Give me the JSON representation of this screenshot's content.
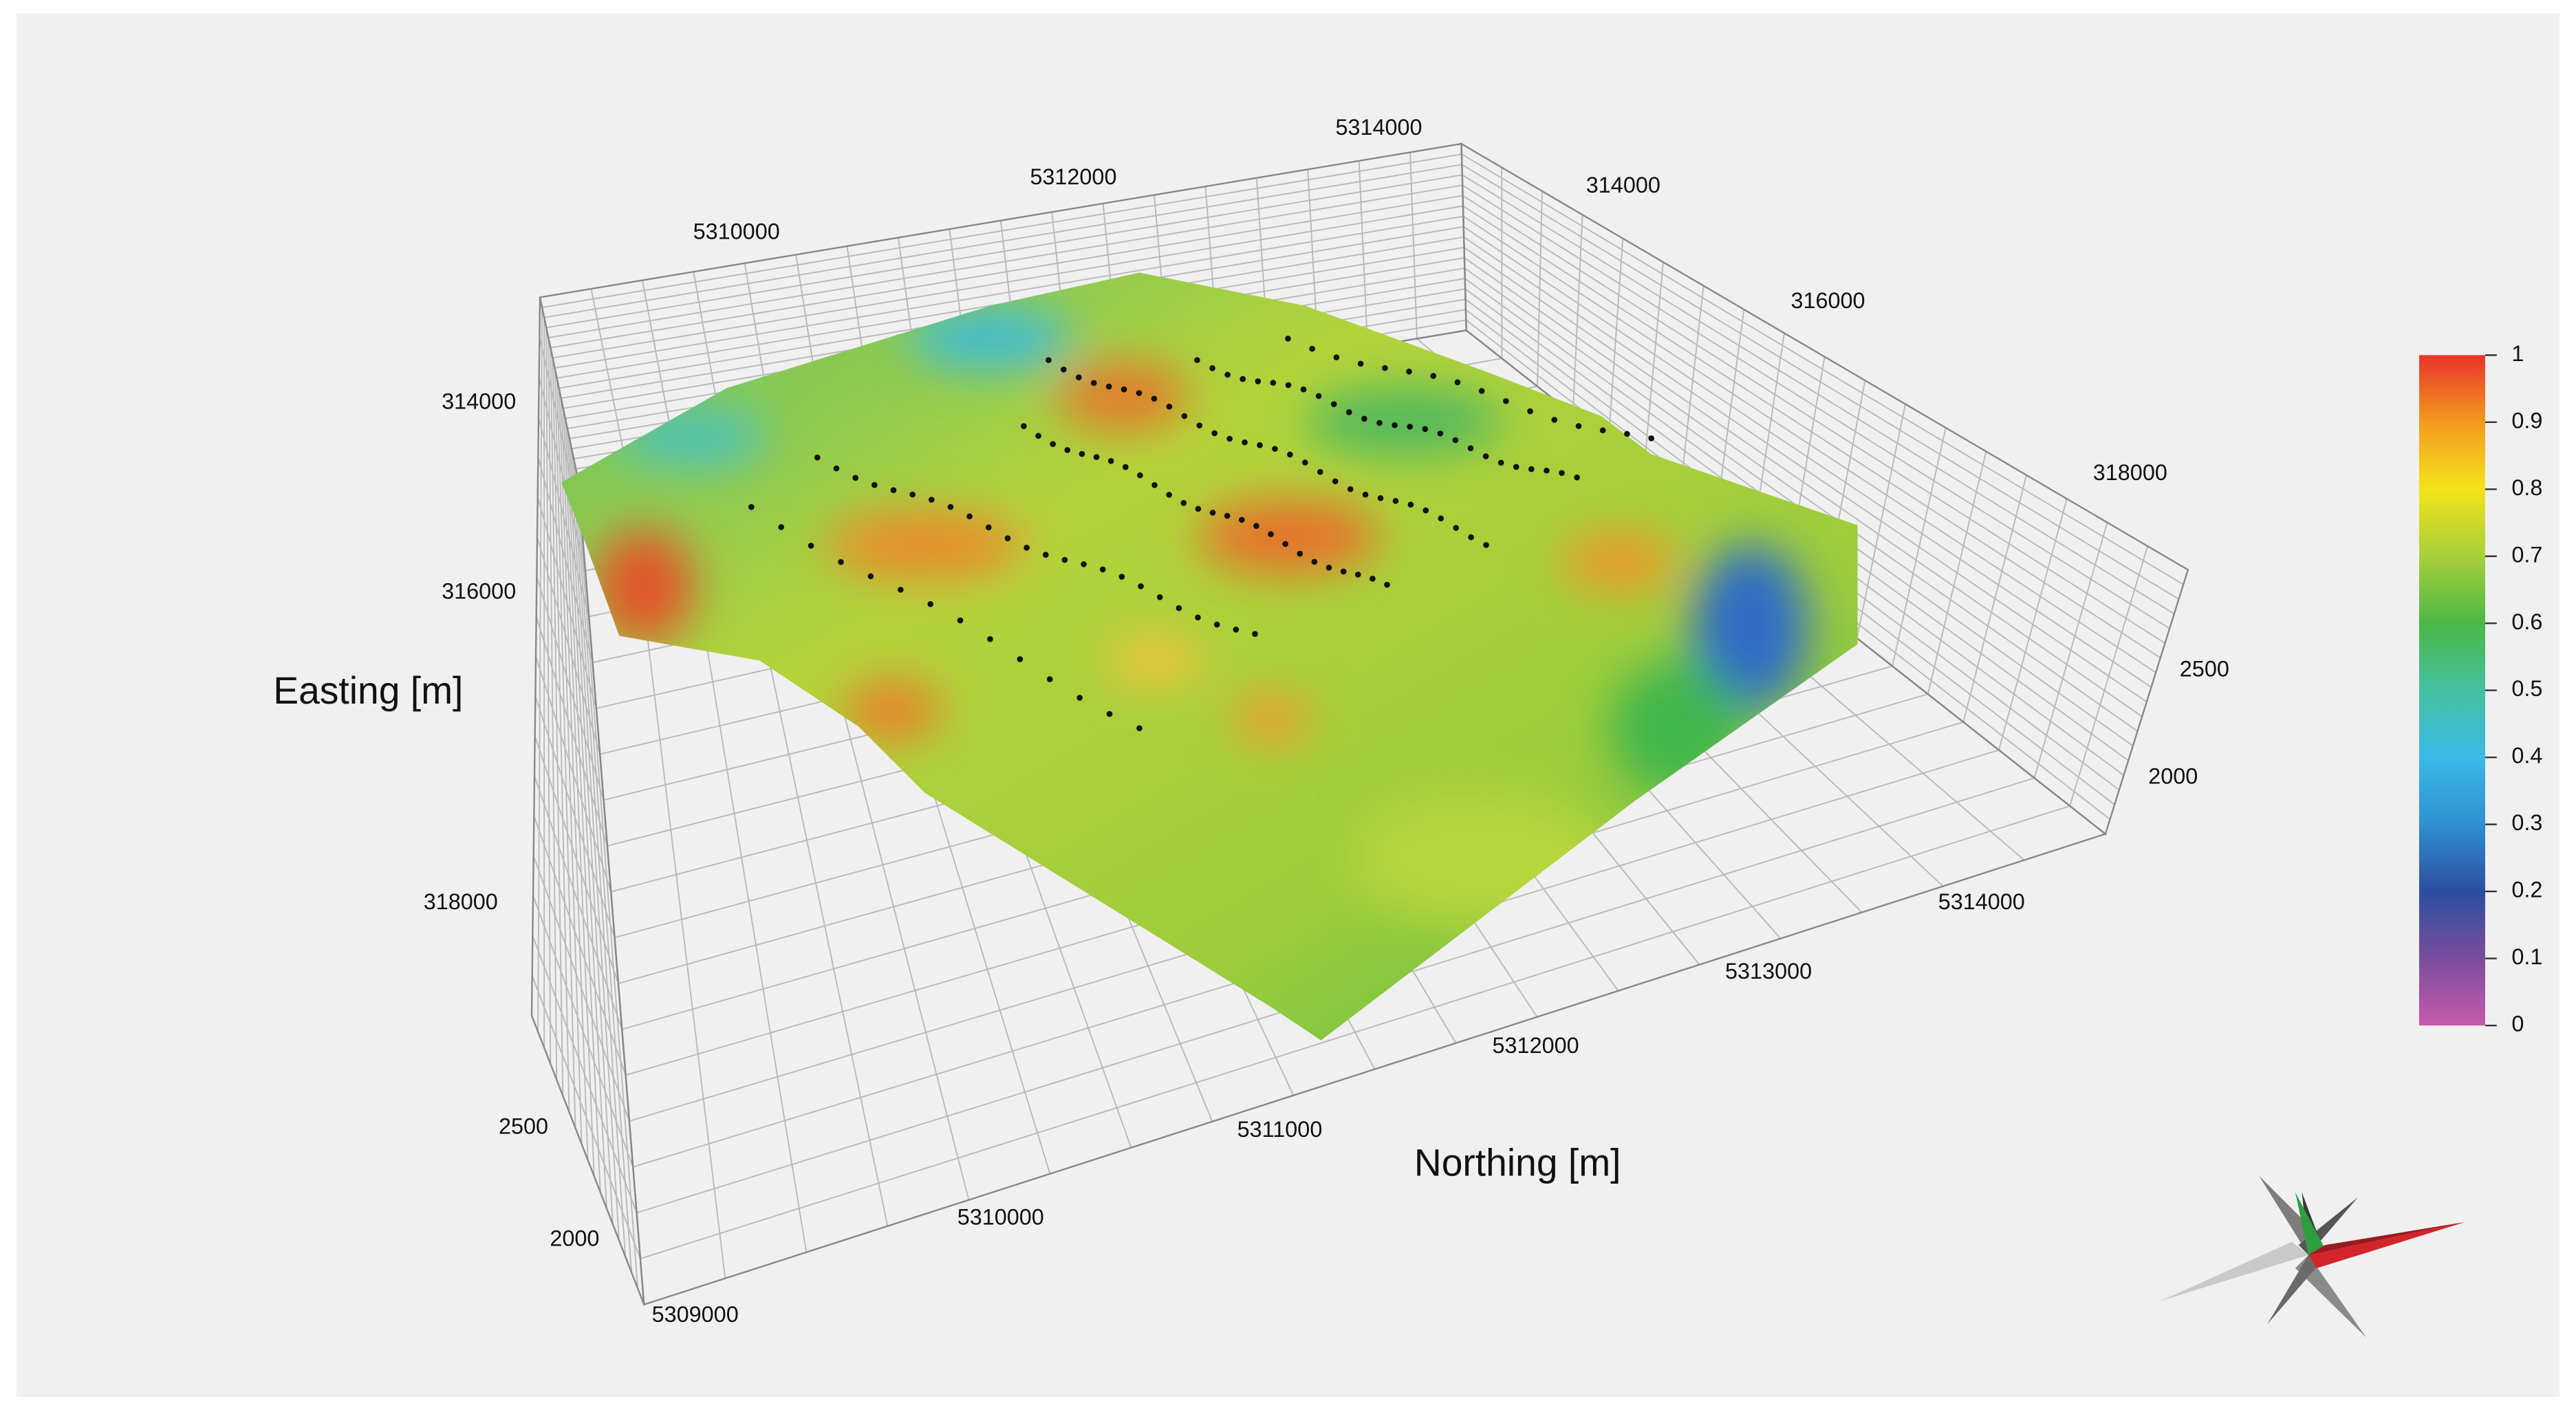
{
  "axes": {
    "easting_title": "Easting [m]",
    "northing_title": "Northing [m]",
    "northing_top_ticks": [
      5310000,
      5312000,
      5314000
    ],
    "easting_right_ticks": [
      314000,
      316000,
      318000
    ],
    "z_right_ticks": [
      2500,
      2000
    ],
    "northing_bottom_ticks": [
      5314000,
      5313000,
      5312000,
      5311000,
      5310000,
      5309000
    ],
    "easting_left_ticks": [
      314000,
      316000,
      318000
    ],
    "z_left_ticks": [
      2500,
      2000
    ]
  },
  "colorbar": {
    "ticks": [
      1,
      0.9,
      0.8,
      0.7,
      0.6,
      0.5,
      0.4,
      0.3,
      0.2,
      0.1,
      0
    ]
  }
}
